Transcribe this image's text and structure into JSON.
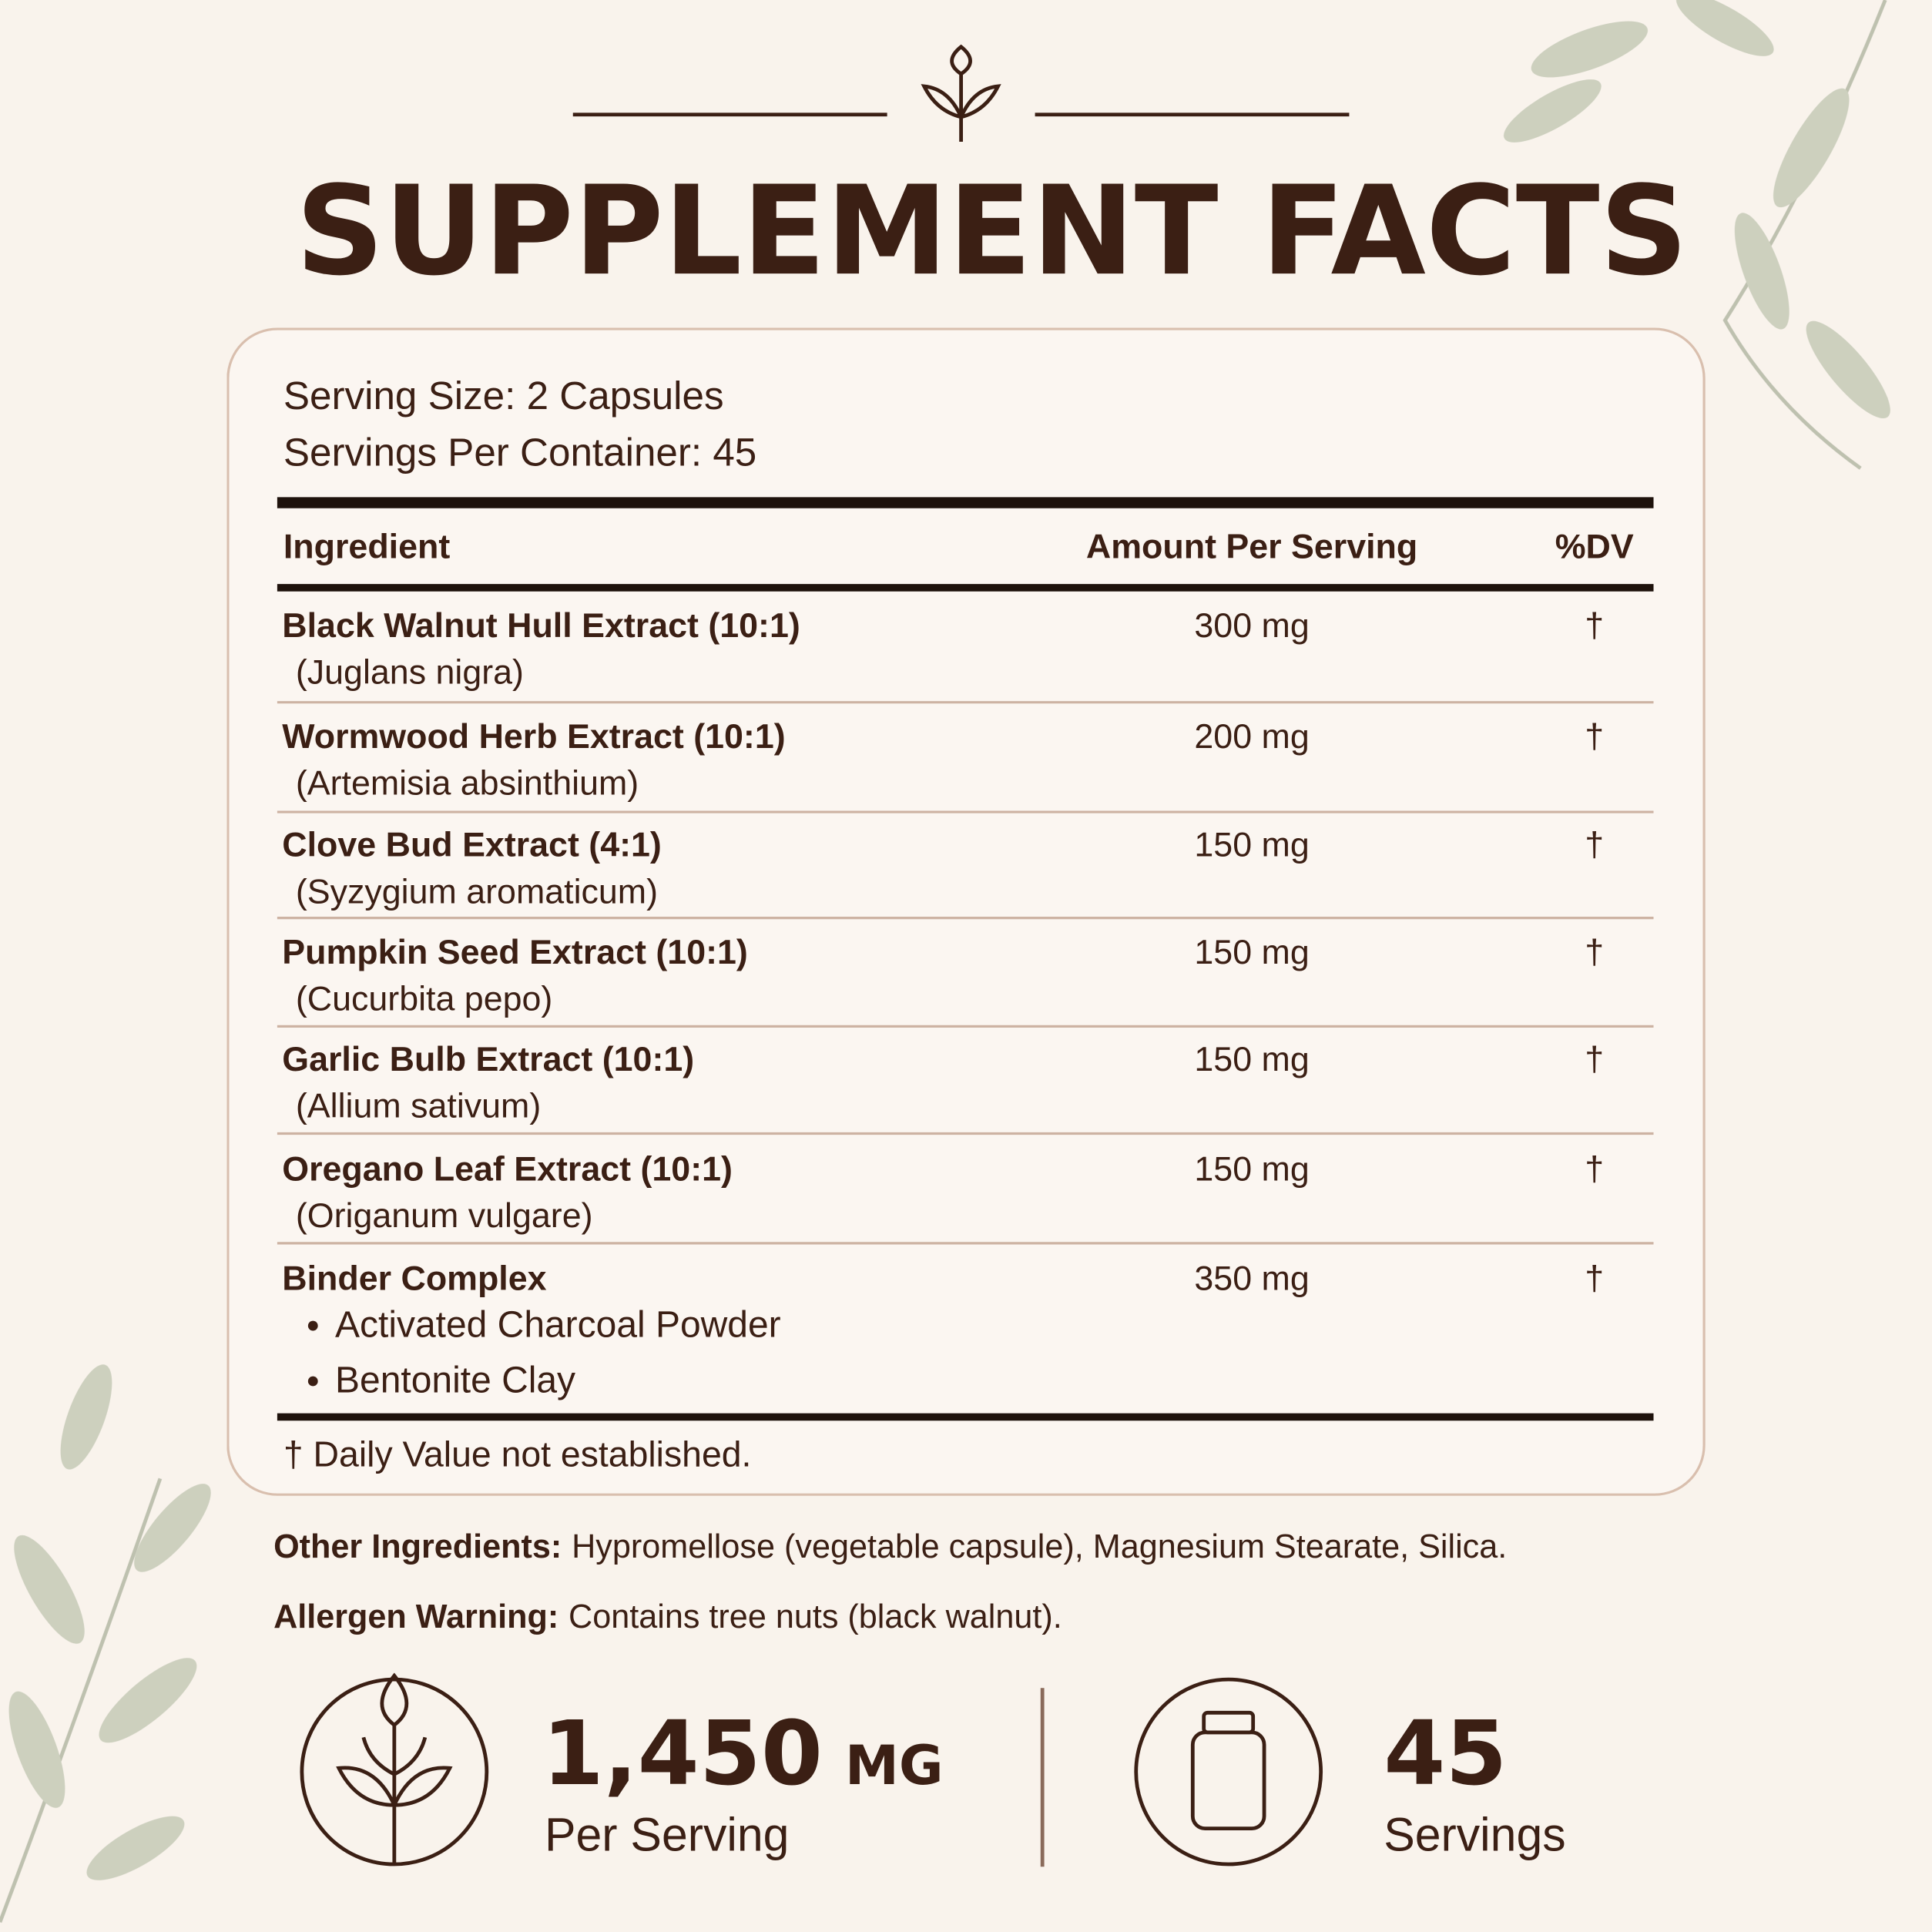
{
  "header": {
    "title": "SUPPLEMENT FACTS"
  },
  "serving": {
    "size": "Serving Size: 2 Capsules",
    "per_container": "Servings Per Container: 45"
  },
  "table": {
    "columns": [
      "Ingredient",
      "Amount Per Serving",
      "%DV"
    ],
    "rows": [
      {
        "name": "Black Walnut Hull Extract (10:1)",
        "detail": "(Juglans nigra)",
        "amount": "300 mg",
        "dv": "†"
      },
      {
        "name": "Wormwood Herb Extract (10:1)",
        "detail": "(Artemisia absinthium)",
        "amount": "200 mg",
        "dv": "†"
      },
      {
        "name": "Clove Bud Extract (4:1)",
        "detail": "(Syzygium aromaticum)",
        "amount": "150 mg",
        "dv": "†"
      },
      {
        "name": "Pumpkin Seed Extract (10:1)",
        "detail": "(Cucurbita pepo)",
        "amount": "150 mg",
        "dv": "†"
      },
      {
        "name": "Garlic Bulb Extract (10:1)",
        "detail": "(Allium sativum)",
        "amount": "150 mg",
        "dv": "†"
      },
      {
        "name": "Oregano Leaf Extract (10:1)",
        "detail": "(Origanum vulgare)",
        "amount": "150 mg",
        "dv": "†"
      },
      {
        "name": "Binder Complex",
        "items": [
          "Activated Charcoal Powder",
          "Bentonite Clay"
        ],
        "amount": "350 mg",
        "dv": "†"
      }
    ],
    "footnote": "† Daily Value not established."
  },
  "other_ingredients": {
    "label": "Other Ingredients:",
    "text": "Hypromellose (vegetable capsule), Magnesium Stearate, Silica."
  },
  "allergen": {
    "label": "Allergen Warning:",
    "text": "Contains tree nuts (black walnut)."
  },
  "stats": [
    {
      "value": "1,450",
      "unit": "MG",
      "label": "Per Serving"
    },
    {
      "value": "45",
      "label": "Servings"
    }
  ]
}
